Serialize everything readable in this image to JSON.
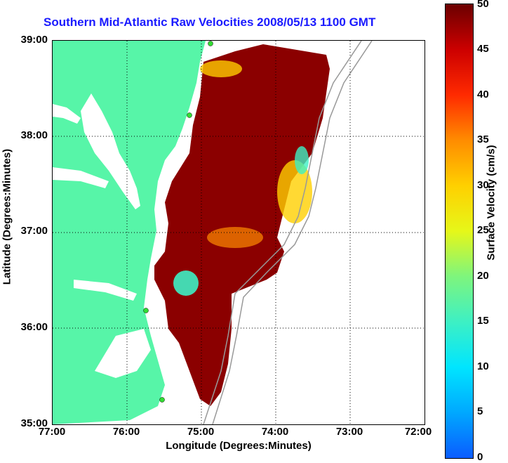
{
  "title": "Southern Mid-Atlantic Raw Velocities 2008/05/13 1100 GMT",
  "xaxis": {
    "label": "Longitude (Degrees:Minutes)",
    "ticks": [
      "77:00",
      "76:00",
      "75:00",
      "74:00",
      "73:00",
      "72:00"
    ]
  },
  "yaxis": {
    "label": "Latitude (Degrees:Minutes)",
    "ticks": [
      "39:00",
      "38:00",
      "37:00",
      "36:00",
      "35:00"
    ]
  },
  "colorbar": {
    "label": "Surface Velocity (cm/s)",
    "ticks": [
      "50",
      "45",
      "40",
      "35",
      "30",
      "25",
      "20",
      "15",
      "10",
      "5",
      "0"
    ]
  },
  "colors": {
    "land": "#57f5a8",
    "title": "#1a1aff",
    "high": "#8b0000",
    "low": "#0a5cff"
  }
}
